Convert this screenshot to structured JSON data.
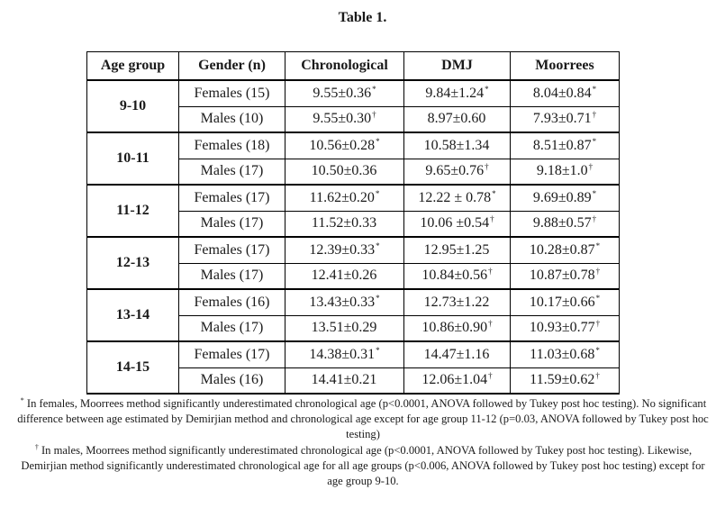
{
  "title": "Table 1.",
  "headers": [
    "Age group",
    "Gender (n)",
    "Chronological",
    "DMJ",
    "Moorrees"
  ],
  "groups": [
    {
      "age": "9-10",
      "rows": [
        {
          "gender": "Females (15)",
          "chrono": "9.55±0.36",
          "chrono_mark": "*",
          "dmj": "9.84±1.24",
          "dmj_mark": "*",
          "moorrees": "8.04±0.84",
          "moorrees_mark": "*"
        },
        {
          "gender": "Males (10)",
          "chrono": "9.55±0.30",
          "chrono_mark": "†",
          "dmj": "8.97±0.60",
          "dmj_mark": "",
          "moorrees": "7.93±0.71",
          "moorrees_mark": "†"
        }
      ]
    },
    {
      "age": "10-11",
      "rows": [
        {
          "gender": "Females (18)",
          "chrono": "10.56±0.28",
          "chrono_mark": "*",
          "dmj": "10.58±1.34",
          "dmj_mark": "",
          "moorrees": "8.51±0.87",
          "moorrees_mark": "*"
        },
        {
          "gender": "Males (17)",
          "chrono": "10.50±0.36",
          "chrono_mark": "",
          "dmj": "9.65±0.76",
          "dmj_mark": "†",
          "moorrees": "9.18±1.0",
          "moorrees_mark": "†"
        }
      ]
    },
    {
      "age": "11-12",
      "rows": [
        {
          "gender": "Females (17)",
          "chrono": "11.62±0.20",
          "chrono_mark": "*",
          "dmj": "12.22 ± 0.78",
          "dmj_mark": "*",
          "moorrees": "9.69±0.89",
          "moorrees_mark": "*"
        },
        {
          "gender": "Males (17)",
          "chrono": "11.52±0.33",
          "chrono_mark": "",
          "dmj": "10.06 ±0.54",
          "dmj_mark": "†",
          "moorrees": "9.88±0.57",
          "moorrees_mark": "†"
        }
      ]
    },
    {
      "age": "12-13",
      "rows": [
        {
          "gender": "Females (17)",
          "chrono": "12.39±0.33",
          "chrono_mark": "*",
          "dmj": "12.95±1.25",
          "dmj_mark": "",
          "moorrees": "10.28±0.87",
          "moorrees_mark": "*"
        },
        {
          "gender": "Males (17)",
          "chrono": "12.41±0.26",
          "chrono_mark": "",
          "dmj": "10.84±0.56",
          "dmj_mark": "†",
          "moorrees": "10.87±0.78",
          "moorrees_mark": "†"
        }
      ]
    },
    {
      "age": "13-14",
      "rows": [
        {
          "gender": "Females (16)",
          "chrono": "13.43±0.33",
          "chrono_mark": "*",
          "dmj": "12.73±1.22",
          "dmj_mark": "",
          "moorrees": "10.17±0.66",
          "moorrees_mark": "*"
        },
        {
          "gender": "Males (17)",
          "chrono": "13.51±0.29",
          "chrono_mark": "",
          "dmj": "10.86±0.90",
          "dmj_mark": "†",
          "moorrees": "10.93±0.77",
          "moorrees_mark": "†"
        }
      ]
    },
    {
      "age": "14-15",
      "rows": [
        {
          "gender": "Females (17)",
          "chrono": "14.38±0.31",
          "chrono_mark": "*",
          "dmj": "14.47±1.16",
          "dmj_mark": "",
          "moorrees": "11.03±0.68",
          "moorrees_mark": "*"
        },
        {
          "gender": "Males (16)",
          "chrono": "14.41±0.21",
          "chrono_mark": "",
          "dmj": "12.06±1.04",
          "dmj_mark": "†",
          "moorrees": "11.59±0.62",
          "moorrees_mark": "†"
        }
      ]
    }
  ],
  "footnotes": [
    {
      "mark": "*",
      "text": " In females, Moorrees method significantly underestimated chronological age (p<0.0001, ANOVA followed by Tukey post hoc testing). No significant difference between age estimated by Demirjian method and chronological age except for age group 11-12 (p=0.03, ANOVA followed by Tukey post hoc testing)"
    },
    {
      "mark": "†",
      "text": " In males, Moorrees method significantly underestimated chronological age (p<0.0001, ANOVA followed by Tukey post hoc testing). Likewise, Demirjian method significantly underestimated chronological age for all age groups (p<0.006, ANOVA followed by Tukey post hoc testing) except for age group 9-10."
    }
  ]
}
